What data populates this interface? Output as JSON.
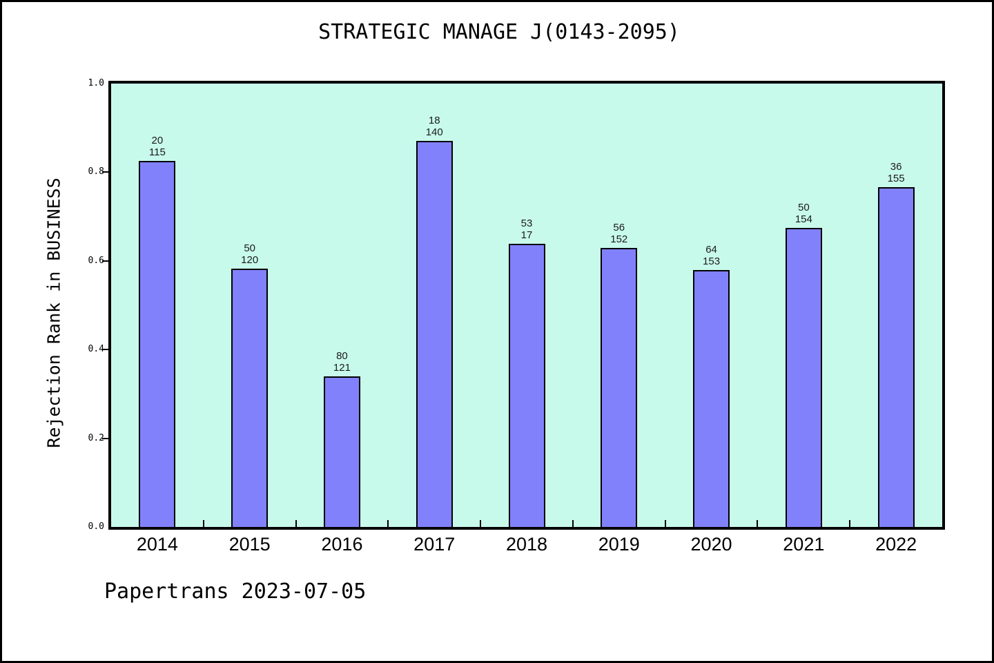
{
  "page": {
    "title": "STRATEGIC MANAGE J(0143-2095)",
    "footer": "Papertrans 2023-07-05"
  },
  "chart_data": {
    "type": "bar",
    "title": "STRATEGIC MANAGE J(0143-2095)",
    "xlabel": "",
    "ylabel": "Rejection Rank in BUSINESS",
    "categories": [
      "2014",
      "2015",
      "2016",
      "2017",
      "2018",
      "2019",
      "2020",
      "2021",
      "2022"
    ],
    "values": [
      0.826,
      0.583,
      0.339,
      0.87,
      0.638,
      0.63,
      0.58,
      0.674,
      0.767
    ],
    "bar_labels": [
      [
        "20",
        "115"
      ],
      [
        "50",
        "120"
      ],
      [
        "80",
        "121"
      ],
      [
        "18",
        "140"
      ],
      [
        "53",
        "17"
      ],
      [
        "56",
        "152"
      ],
      [
        "64",
        "153"
      ],
      [
        "50",
        "154"
      ],
      [
        "36",
        "155"
      ]
    ],
    "ylim": [
      0.0,
      1.0
    ],
    "yticks": [
      "0.0",
      "0.2",
      "0.4",
      "0.6",
      "0.8",
      "1.0"
    ],
    "grid": false,
    "legend": null,
    "colors": {
      "bar_fill": "#8181fb",
      "bar_edge": "#000000",
      "plot_bg": "#c8faeb",
      "page_bg": "#ffffff",
      "text": "#000000"
    }
  }
}
